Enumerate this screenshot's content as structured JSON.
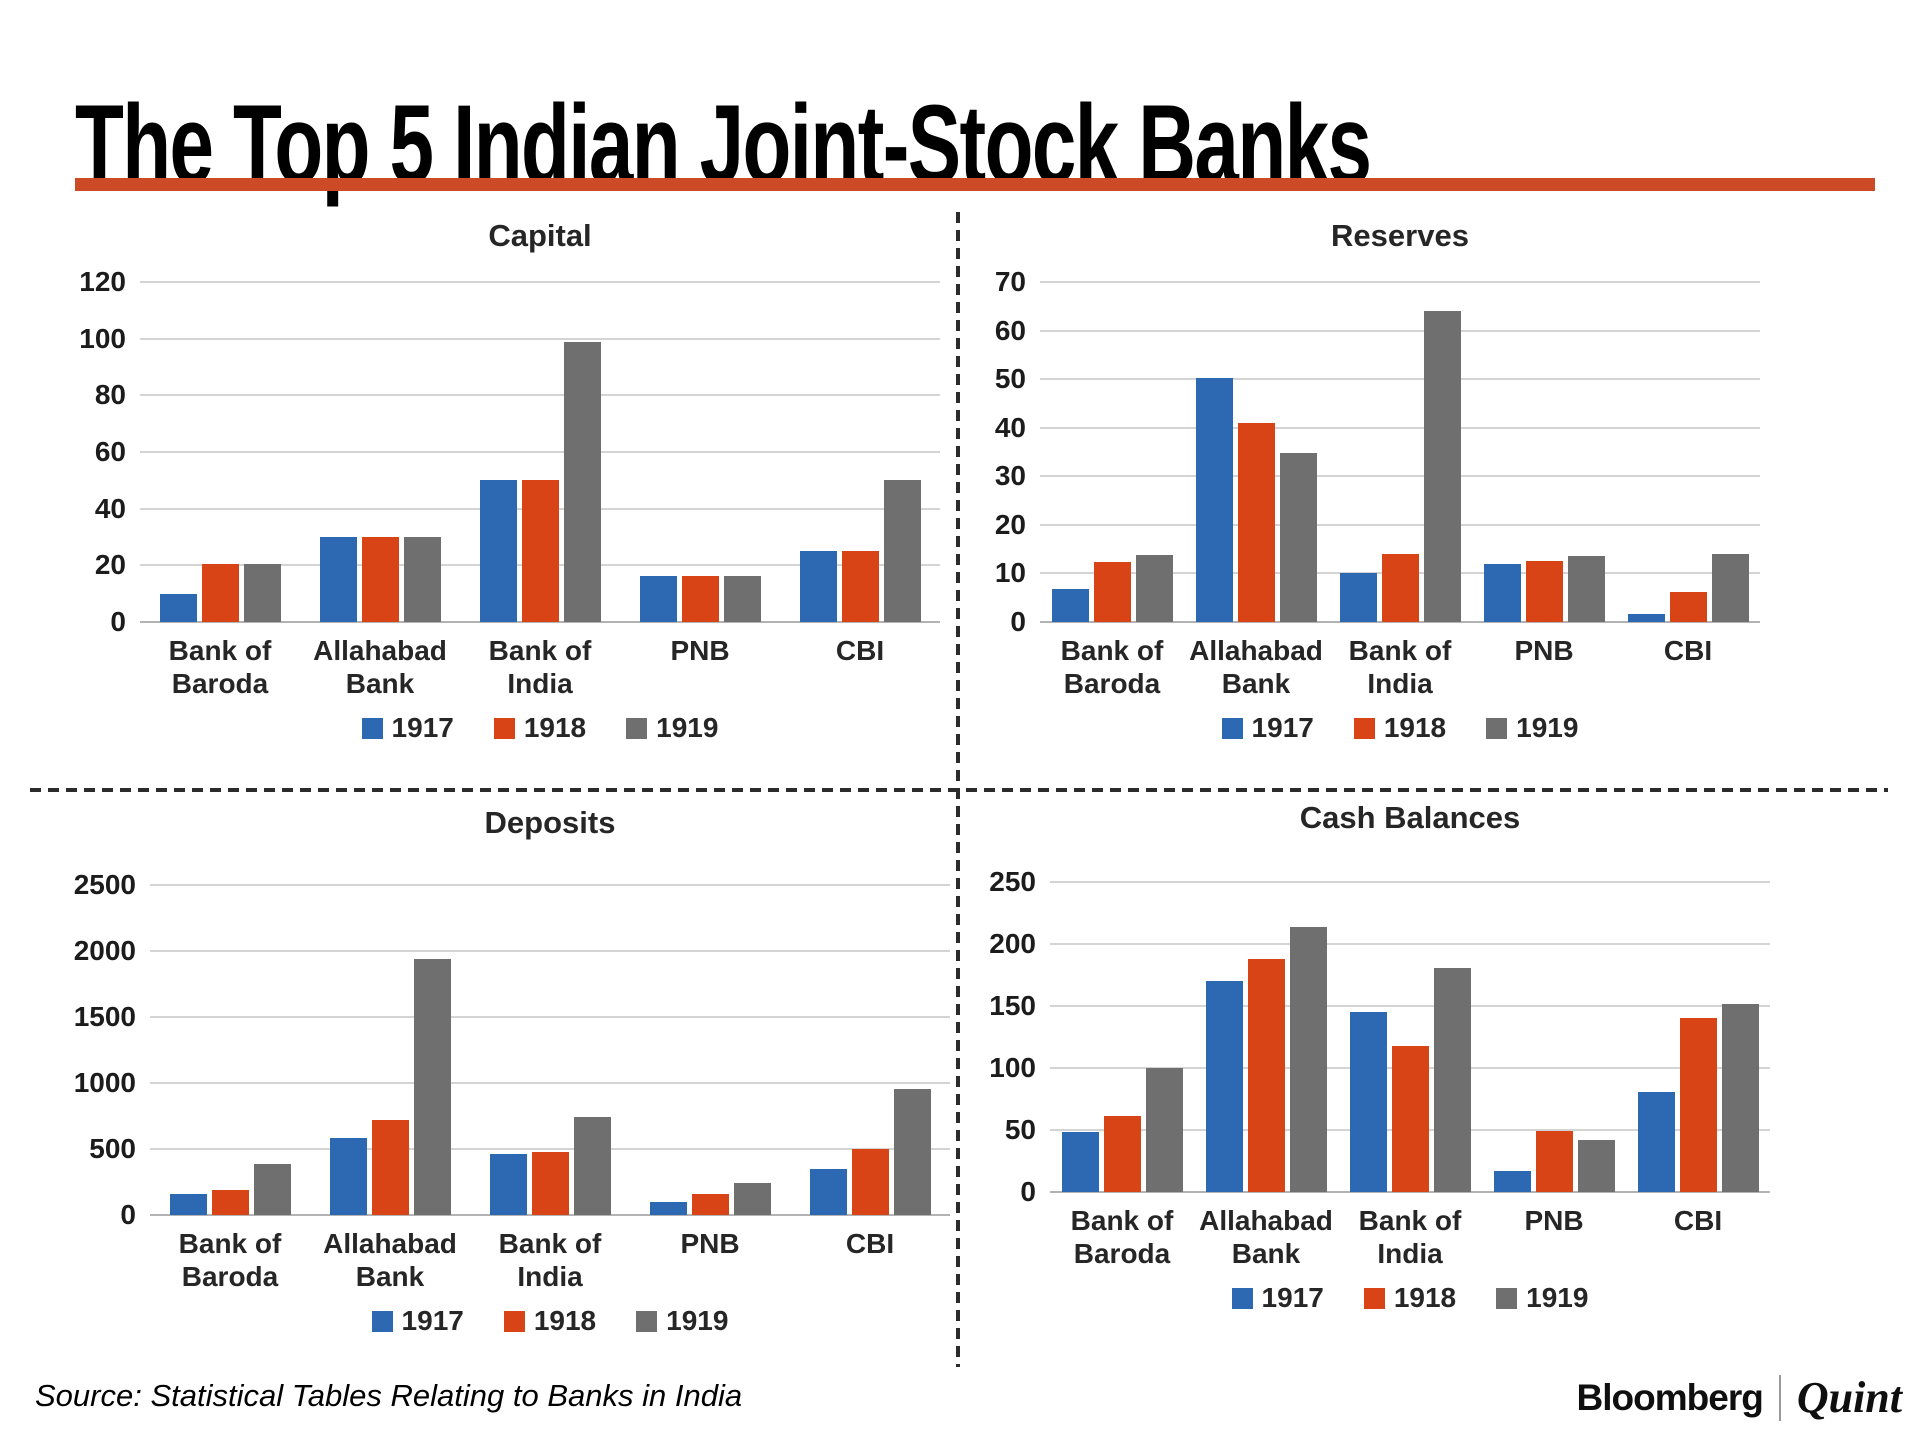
{
  "title": "The Top 5 Indian Joint-Stock Banks",
  "accent_rule_color": "#CC4A26",
  "source": "Source: Statistical Tables Relating to Banks in India",
  "branding": {
    "bloomberg": "Bloomberg",
    "quint": "Quint"
  },
  "chart_data": [
    {
      "type": "bar",
      "title": "Capital",
      "categories": [
        "Bank of\nBaroda",
        "Allahabad\nBank",
        "Bank of\nIndia",
        "PNB",
        "CBI"
      ],
      "series": [
        {
          "name": "1917",
          "color": "#2D68B2",
          "values": [
            10,
            30,
            50,
            16.3,
            25
          ]
        },
        {
          "name": "1918",
          "color": "#D94416",
          "values": [
            20.5,
            30,
            50,
            16.3,
            25
          ]
        },
        {
          "name": "1919",
          "color": "#6F6F6F",
          "values": [
            20.5,
            30,
            99,
            16.3,
            50
          ]
        }
      ],
      "ylim": [
        0,
        120
      ],
      "yticks": [
        0,
        20,
        40,
        60,
        80,
        100,
        120
      ],
      "grid": true,
      "legend_position": "bottom"
    },
    {
      "type": "bar",
      "title": "Reserves",
      "categories": [
        "Bank of\nBaroda",
        "Allahabad\nBank",
        "Bank of\nIndia",
        "PNB",
        "CBI"
      ],
      "series": [
        {
          "name": "1917",
          "color": "#2D68B2",
          "values": [
            6.8,
            50.3,
            10,
            11.9,
            1.7
          ]
        },
        {
          "name": "1918",
          "color": "#D94416",
          "values": [
            12.3,
            41,
            14,
            12.6,
            6.1
          ]
        },
        {
          "name": "1919",
          "color": "#6F6F6F",
          "values": [
            13.8,
            34.7,
            64,
            13.6,
            14
          ]
        }
      ],
      "ylim": [
        0,
        70
      ],
      "yticks": [
        0,
        10,
        20,
        30,
        40,
        50,
        60,
        70
      ],
      "grid": true,
      "legend_position": "bottom"
    },
    {
      "type": "bar",
      "title": "Deposits",
      "categories": [
        "Bank of\nBaroda",
        "Allahabad\nBank",
        "Bank of\nIndia",
        "PNB",
        "CBI"
      ],
      "series": [
        {
          "name": "1917",
          "color": "#2D68B2",
          "values": [
            160,
            580,
            465,
            95,
            350
          ]
        },
        {
          "name": "1918",
          "color": "#D94416",
          "values": [
            190,
            720,
            475,
            160,
            500
          ]
        },
        {
          "name": "1919",
          "color": "#6F6F6F",
          "values": [
            390,
            1940,
            740,
            240,
            955
          ]
        }
      ],
      "ylim": [
        0,
        2500
      ],
      "yticks": [
        0,
        500,
        1000,
        1500,
        2000,
        2500
      ],
      "grid": true,
      "legend_position": "bottom"
    },
    {
      "type": "bar",
      "title": "Cash Balances",
      "categories": [
        "Bank of\nBaroda",
        "Allahabad\nBank",
        "Bank of\nIndia",
        "PNB",
        "CBI"
      ],
      "series": [
        {
          "name": "1917",
          "color": "#2D68B2",
          "values": [
            48,
            170,
            145,
            17,
            81
          ]
        },
        {
          "name": "1918",
          "color": "#D94416",
          "values": [
            61,
            188,
            118,
            49,
            140
          ]
        },
        {
          "name": "1919",
          "color": "#6F6F6F",
          "values": [
            100,
            214,
            181,
            42,
            152
          ]
        }
      ],
      "ylim": [
        0,
        250
      ],
      "yticks": [
        0,
        50,
        100,
        150,
        200,
        250
      ],
      "grid": true,
      "legend_position": "bottom"
    }
  ]
}
